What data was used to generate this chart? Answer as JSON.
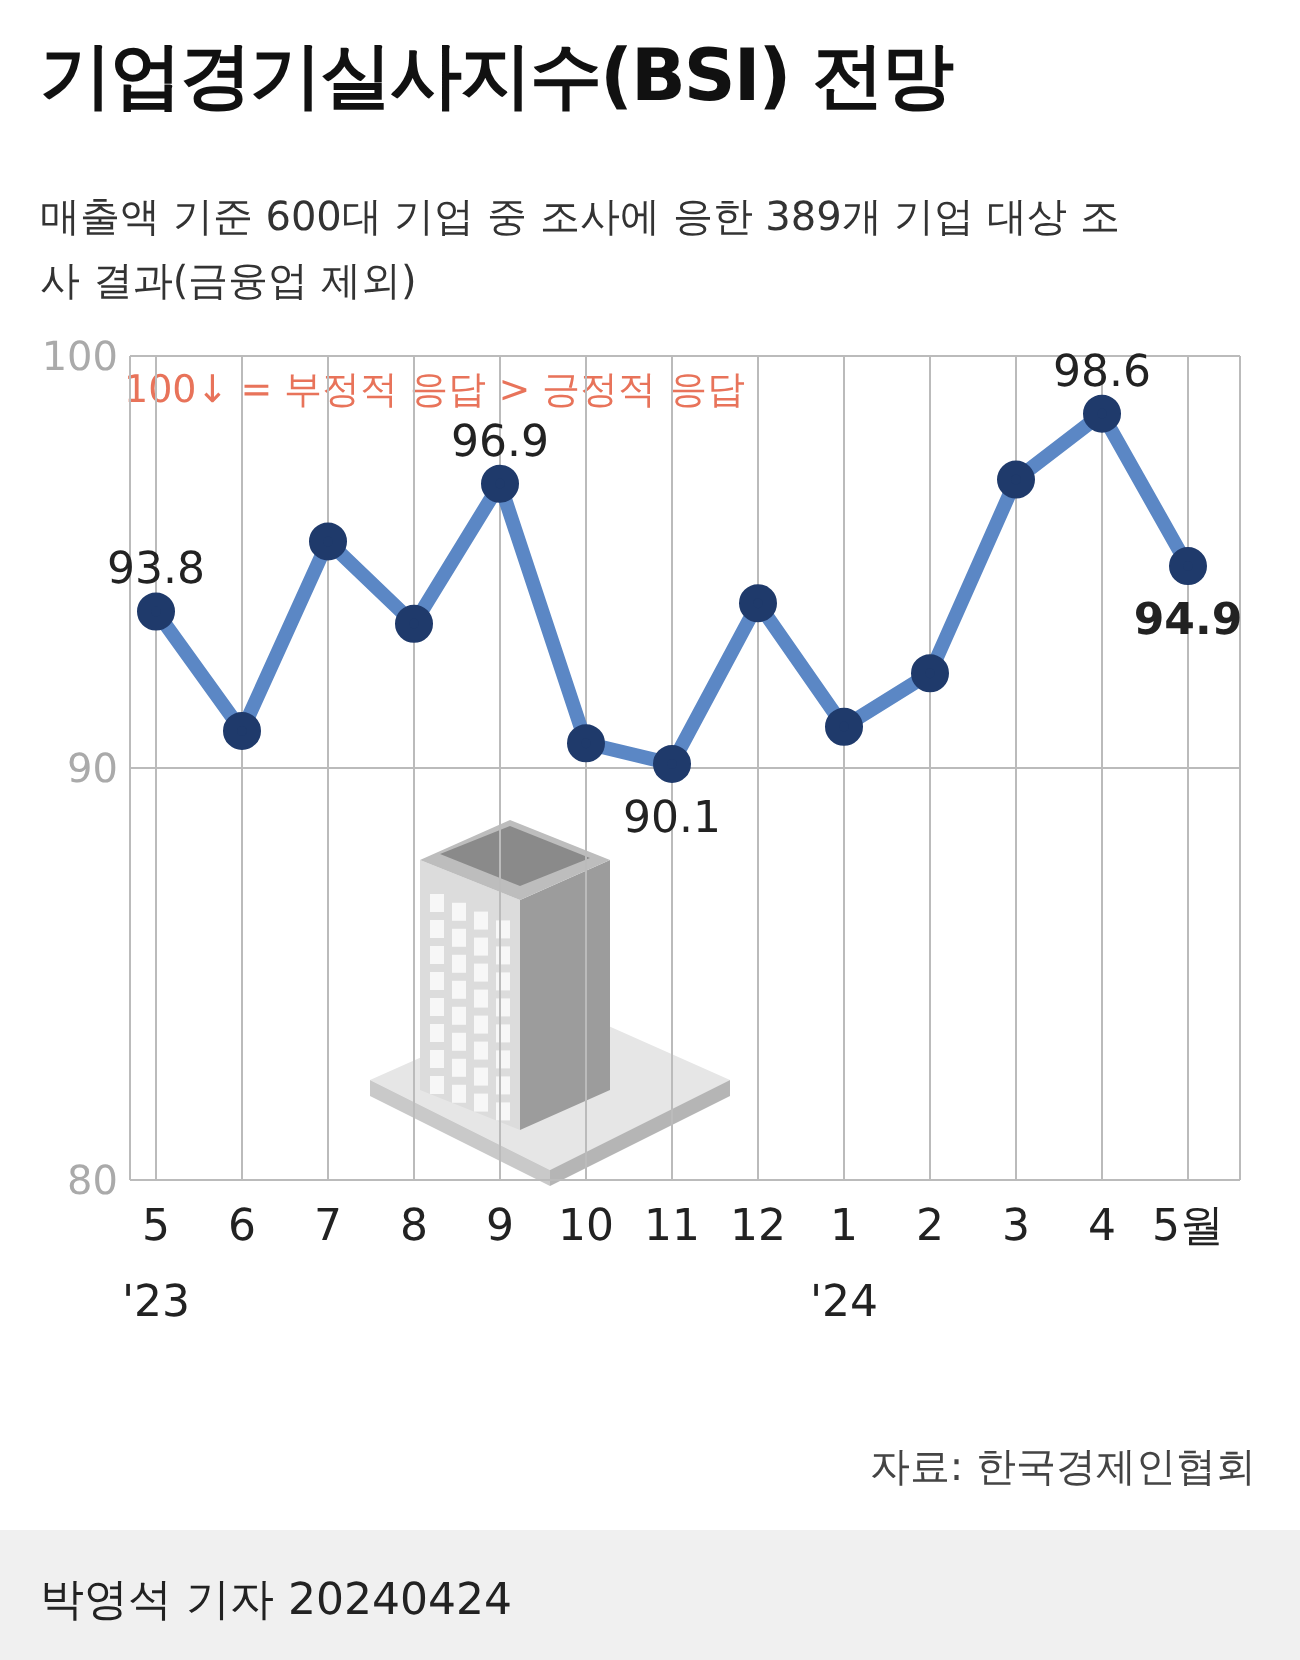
{
  "chart_data": {
    "type": "line",
    "title": "기업경기실사지수(BSI) 전망",
    "subtitle": "매출액 기준 600대 기업 중 조사에 응한 389개 기업 대상 조사 결과(금융업 제외)",
    "categories": [
      "5\n'23",
      "6",
      "7",
      "8",
      "9",
      "10",
      "11",
      "12",
      "1\n'24",
      "2",
      "3",
      "4",
      "5월"
    ],
    "series": [
      {
        "color": "#5b87c5",
        "values": [
          93.8,
          90.9,
          95.5,
          93.5,
          96.9,
          90.6,
          90.1,
          94.0,
          91.0,
          92.3,
          97.0,
          98.6,
          94.9
        ],
        "value_labels": [
          "93.8",
          null,
          null,
          null,
          "96.9",
          null,
          "90.1",
          null,
          null,
          null,
          null,
          "98.6",
          "94.9"
        ]
      }
    ],
    "ylim": [
      80,
      100
    ],
    "yticks": [
      80,
      90,
      100
    ],
    "grid": true,
    "marker": "circle",
    "annotations": [
      "100↓ = 부정적 응답 > 긍정적 응답",
      "자료: 한국경제인협회",
      "박영석 기자 20240424"
    ]
  }
}
